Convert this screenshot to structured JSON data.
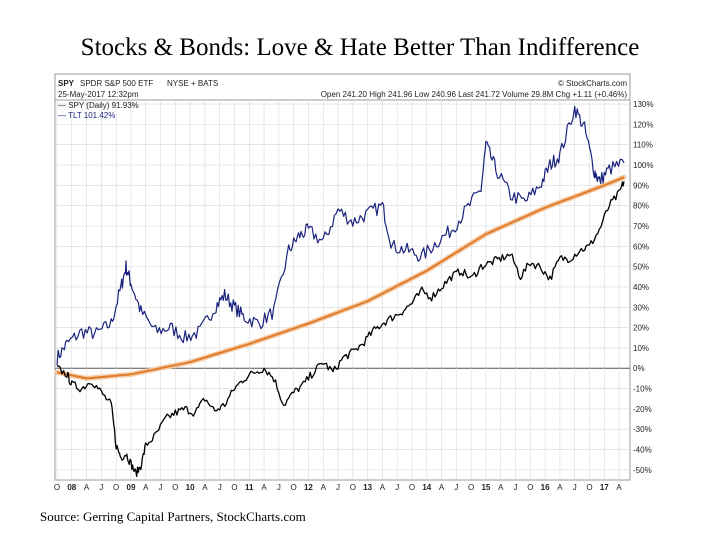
{
  "slide": {
    "title": "Stocks & Bonds: Love & Hate Better Than Indifference",
    "source": "Source: Gerring Capital Partners, StockCharts.com"
  },
  "header": {
    "symbol": "SPY",
    "name": "SPDR S&P 500 ETF",
    "exchange": "NYSE + BATS",
    "brand": "© StockCharts.com",
    "date": "25-May-2017 12:32pm",
    "quote": "Open 241.20  High 241.96  Low 240.96  Last 241.72  Volume 29.8M  Chg +1.11 (+0.46%)"
  },
  "legend": {
    "spy": "— SPY (Daily) 91.93%",
    "tlt": "— TLT 101.42%"
  },
  "colors": {
    "spy": "#000000",
    "tlt": "#1a237e",
    "trend": "#e07b2a",
    "grid": "#d8d8d8",
    "zero": "#555555"
  },
  "chart_data": {
    "type": "line",
    "y_unit": "%",
    "ylim": [
      -55,
      132
    ],
    "y_ticks": [
      "130%",
      "120%",
      "110%",
      "100%",
      "90%",
      "80%",
      "70%",
      "60%",
      "50%",
      "40%",
      "30%",
      "20%",
      "10%",
      "0%",
      "-10%",
      "-20%",
      "-30%",
      "-40%",
      "-50%"
    ],
    "x_tick_labels": [
      "O",
      "08",
      "A",
      "J",
      "O",
      "09",
      "A",
      "J",
      "O",
      "10",
      "A",
      "J",
      "O",
      "11",
      "A",
      "J",
      "O",
      "12",
      "A",
      "J",
      "O",
      "13",
      "A",
      "J",
      "O",
      "14",
      "A",
      "J",
      "O",
      "15",
      "A",
      "J",
      "O",
      "16",
      "A",
      "J",
      "O",
      "17",
      "A"
    ],
    "x_range": [
      "2007-10",
      "2017-05"
    ],
    "grid": true,
    "legend_position": "top-left",
    "series": [
      {
        "name": "SPY (Daily) 91.93%",
        "x": [
          "2007-10",
          "2007-12",
          "2008-01",
          "2008-03",
          "2008-05",
          "2008-07",
          "2008-09",
          "2008-10",
          "2008-11",
          "2008-12",
          "2009-01",
          "2009-02",
          "2009-03",
          "2009-04",
          "2009-06",
          "2009-08",
          "2009-10",
          "2009-12",
          "2010-02",
          "2010-04",
          "2010-06",
          "2010-08",
          "2010-10",
          "2010-12",
          "2011-02",
          "2011-04",
          "2011-06",
          "2011-08",
          "2011-10",
          "2011-12",
          "2012-02",
          "2012-04",
          "2012-06",
          "2012-08",
          "2012-10",
          "2012-12",
          "2013-02",
          "2013-04",
          "2013-06",
          "2013-08",
          "2013-10",
          "2013-12",
          "2014-02",
          "2014-04",
          "2014-06",
          "2014-08",
          "2014-10",
          "2014-12",
          "2015-02",
          "2015-04",
          "2015-06",
          "2015-08",
          "2015-10",
          "2015-12",
          "2016-02",
          "2016-04",
          "2016-06",
          "2016-08",
          "2016-10",
          "2016-12",
          "2017-02",
          "2017-04",
          "2017-05"
        ],
        "values": [
          0,
          -3,
          -8,
          -10,
          -6,
          -12,
          -18,
          -38,
          -44,
          -42,
          -47,
          -52,
          -48,
          -38,
          -33,
          -25,
          -22,
          -20,
          -22,
          -15,
          -21,
          -18,
          -10,
          -5,
          -2,
          0,
          -5,
          -18,
          -12,
          -8,
          -2,
          3,
          -2,
          5,
          8,
          12,
          18,
          22,
          25,
          28,
          32,
          38,
          35,
          40,
          45,
          48,
          44,
          50,
          52,
          54,
          56,
          45,
          52,
          50,
          44,
          54,
          54,
          58,
          60,
          68,
          80,
          86,
          92
        ]
      },
      {
        "name": "TLT 101.42%",
        "x": [
          "2007-10",
          "2007-12",
          "2008-03",
          "2008-06",
          "2008-09",
          "2008-11",
          "2008-12",
          "2009-01",
          "2009-03",
          "2009-06",
          "2009-09",
          "2009-12",
          "2010-03",
          "2010-06",
          "2010-08",
          "2010-10",
          "2010-12",
          "2011-03",
          "2011-06",
          "2011-09",
          "2011-11",
          "2012-01",
          "2012-04",
          "2012-07",
          "2012-10",
          "2013-01",
          "2013-04",
          "2013-06",
          "2013-09",
          "2013-12",
          "2014-03",
          "2014-06",
          "2014-09",
          "2014-12",
          "2015-01",
          "2015-03",
          "2015-06",
          "2015-09",
          "2015-12",
          "2016-02",
          "2016-04",
          "2016-07",
          "2016-09",
          "2016-11",
          "2016-12",
          "2017-02",
          "2017-05"
        ],
        "values": [
          5,
          12,
          18,
          17,
          22,
          40,
          50,
          42,
          28,
          18,
          20,
          15,
          18,
          30,
          36,
          30,
          25,
          22,
          28,
          58,
          65,
          68,
          62,
          78,
          72,
          76,
          80,
          60,
          58,
          55,
          62,
          68,
          78,
          88,
          110,
          98,
          85,
          82,
          90,
          100,
          105,
          128,
          118,
          97,
          92,
          98,
          101
        ]
      },
      {
        "name": "",
        "x": [
          "2007-10",
          "2008-04",
          "2009-01",
          "2010-01",
          "2011-01",
          "2012-01",
          "2013-01",
          "2014-01",
          "2015-01",
          "2016-01",
          "2017-01",
          "2017-05"
        ],
        "values": [
          -2,
          -5,
          -3,
          3,
          12,
          22,
          33,
          48,
          66,
          79,
          90,
          94
        ]
      }
    ]
  }
}
